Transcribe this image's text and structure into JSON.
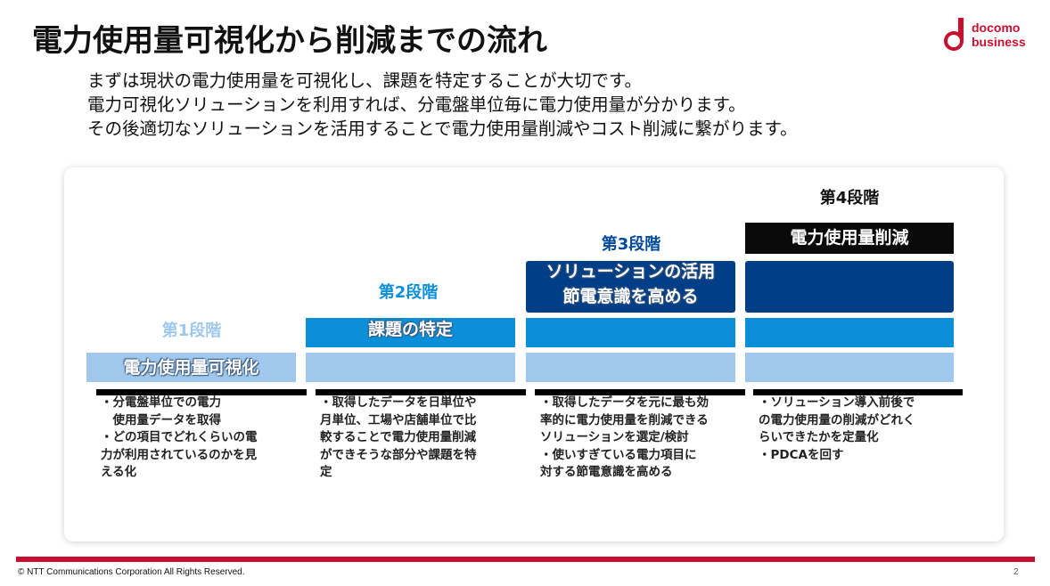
{
  "title": "電力使用量可視化から削減までの流れ",
  "logo": {
    "line1": "docomo",
    "line2": "business",
    "color": "#c8102e"
  },
  "intro": [
    "まずは現状の電力使用量を可視化し、課題を特定することが大切です。",
    "電力可視化ソリューションを利用すれば、分電盤単位毎に電力使用量が分かります。",
    "その後適切なソリューションを活用することで電力使用量削減やコスト削減に繋がります。"
  ],
  "stages": [
    {
      "heading": "第1段階",
      "bar_label": "電力使用量可視化",
      "desc": [
        "・分電盤単位での電力",
        "　使用量データを取得",
        "・どの項目でどれくらいの電",
        "力が利用されているのかを見",
        "える化"
      ]
    },
    {
      "heading": "第2段階",
      "bar_label": "課題の特定",
      "desc": [
        "・取得したデータを日単位や",
        "月単位、工場や店舗単位で比",
        "較することで電力使用量削減",
        "ができそうな部分や課題を特",
        "定"
      ]
    },
    {
      "heading": "第3段階",
      "bar_label_1": "ソリューションの活用",
      "bar_label_2": "節電意識を高める",
      "desc": [
        "・取得したデータを元に最も効",
        "率的に電力使用量を削減できる",
        "ソリューションを選定/検討",
        "・使いすぎている電力項目に",
        "対する節電意識を高める"
      ]
    },
    {
      "heading": "第4段階",
      "bar_label": "電力使用量削減",
      "desc": [
        "・ソリューション導入前後で",
        "の電力使用量の削減がどれく",
        "らいできたかを定量化",
        "・PDCAを回す"
      ]
    }
  ],
  "colors": {
    "stage1_heading": "#9fc8ec",
    "stage2_heading": "#0a8fd8",
    "stage3_heading": "#004a99",
    "stage4_heading": "#111111",
    "light_bar": "#9fc8ec",
    "mid_bar": "#0a8fd8",
    "dark_bar": "#003f88",
    "black_bar": "#0a0a0a",
    "footer_rule": "#c8102e"
  },
  "footer": {
    "copyright": "© NTT Communications Corporation All Rights Reserved.",
    "page_number": "2"
  }
}
